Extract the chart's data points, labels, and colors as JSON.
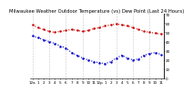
{
  "title": "Milwaukee Weather Outdoor Temperature (vs) Dew Point (Last 24 Hours)",
  "temp": [
    58,
    55,
    53,
    51,
    50,
    51,
    52,
    53,
    52,
    51,
    52,
    54,
    55,
    57,
    58,
    59,
    58,
    57,
    55,
    53,
    51,
    50,
    49,
    48
  ],
  "dew": [
    46,
    44,
    42,
    40,
    38,
    35,
    33,
    28,
    25,
    22,
    20,
    18,
    17,
    16,
    18,
    22,
    25,
    22,
    20,
    21,
    25,
    27,
    28,
    26
  ],
  "temp_color": "#cc0000",
  "dew_color": "#0000cc",
  "bg_color": "#ffffff",
  "grid_color": "#999999",
  "ylim": [
    0,
    70
  ],
  "ytick_values": [
    70,
    60,
    50,
    40,
    30,
    20,
    10,
    0
  ],
  "ytick_labels": [
    "70",
    "60",
    "50",
    "40",
    "30",
    "20",
    "10",
    "0"
  ],
  "time_labels": [
    "12a",
    "1",
    "2",
    "3",
    "4",
    "5",
    "6",
    "7",
    "8",
    "9",
    "10",
    "11",
    "12p",
    "1",
    "2",
    "3",
    "4",
    "5",
    "6",
    "7",
    "8",
    "9",
    "10",
    "11"
  ],
  "title_fontsize": 3.8,
  "tick_fontsize": 3.0,
  "line_width": 0.8,
  "marker_size": 1.5
}
